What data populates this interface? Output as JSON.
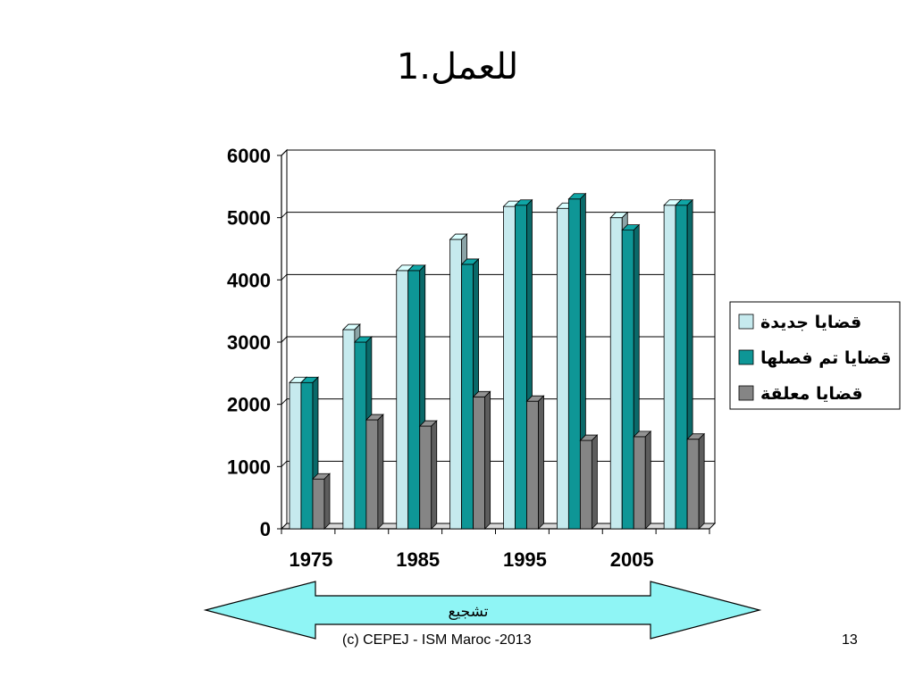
{
  "slide": {
    "title": "1.للعمل",
    "arrow_label": "تشجيع",
    "footer": "(c) CEPEJ - ISM Maroc -2013",
    "page_number": "13"
  },
  "colors": {
    "series_new": "#c6eaee",
    "series_done": "#0e9696",
    "series_pending": "#858585",
    "arrow_fill": "#8ff5f5"
  },
  "chart_data": {
    "type": "bar",
    "title": "",
    "xlabel": "",
    "ylabel": "",
    "ylim": [
      0,
      6000
    ],
    "yticks": [
      "0",
      "1000",
      "2000",
      "3000",
      "4000",
      "5000",
      "6000"
    ],
    "xtick_labels": [
      "1975",
      "1985",
      "1995",
      "2005"
    ],
    "grid": true,
    "legend_position": "right",
    "series": [
      {
        "name": "قضايا جديدة",
        "color": "#c6eaee",
        "values": [
          2350,
          3200,
          4150,
          4650,
          5180,
          5150,
          5000,
          5200
        ]
      },
      {
        "name": "قضايا تم فصلها",
        "color": "#0e9696",
        "values": [
          2350,
          3000,
          4150,
          4250,
          5200,
          5300,
          4800,
          5200
        ]
      },
      {
        "name": "قضايا معلقة",
        "color": "#858585",
        "values": [
          800,
          1750,
          1650,
          2120,
          2050,
          1420,
          1480,
          1440
        ]
      }
    ]
  }
}
